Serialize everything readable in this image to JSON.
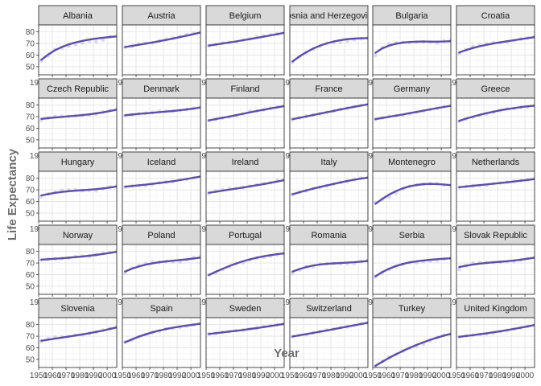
{
  "chart_data": {
    "type": "line",
    "facet": "small-multiples",
    "xlabel": "Year",
    "ylabel": "Life Expectancy",
    "xlim": [
      1950,
      2007
    ],
    "ylim": [
      43,
      86
    ],
    "x_ticks": [
      1950,
      1960,
      1970,
      1980,
      1990,
      2000
    ],
    "y_ticks": [
      50,
      60,
      70,
      80
    ],
    "grid": true,
    "colors": {
      "smooth": "#5e4fa2",
      "points": "#c9c2e8",
      "strip": "#d9d9d9"
    },
    "years": [
      1952,
      1957,
      1962,
      1967,
      1972,
      1977,
      1982,
      1987,
      1992,
      1997,
      2002,
      2007
    ],
    "panels": [
      {
        "name": "Albania",
        "raw": [
          55.2,
          59.3,
          64.8,
          66.2,
          67.7,
          68.9,
          70.4,
          72.0,
          71.6,
          73.0,
          75.7,
          76.4
        ],
        "smooth": [
          56,
          60.5,
          64.2,
          67,
          69.2,
          70.9,
          72.3,
          73.4,
          74.3,
          75,
          75.6,
          76.1
        ]
      },
      {
        "name": "Austria",
        "raw": [
          66.8,
          67.5,
          69.5,
          70.1,
          70.6,
          72.2,
          73.2,
          74.9,
          76.0,
          77.5,
          79.0,
          79.8
        ],
        "smooth": [
          66.9,
          67.9,
          68.9,
          69.9,
          70.9,
          72,
          73.1,
          74.3,
          75.5,
          76.8,
          78.1,
          79.5
        ]
      },
      {
        "name": "Belgium",
        "raw": [
          68.0,
          69.2,
          70.3,
          70.9,
          71.4,
          72.8,
          73.9,
          75.4,
          76.5,
          77.5,
          78.3,
          79.4
        ],
        "smooth": [
          68.2,
          69.1,
          70,
          70.9,
          71.8,
          72.8,
          73.8,
          74.8,
          75.9,
          77,
          78.1,
          79.2
        ]
      },
      {
        "name": "Bosnia and Herzegovina",
        "raw": [
          53.8,
          58.5,
          61.9,
          64.8,
          67.5,
          69.9,
          70.7,
          71.1,
          72.2,
          73.2,
          74.1,
          74.9
        ],
        "smooth": [
          54.5,
          58.8,
          62.5,
          65.6,
          68.1,
          70.1,
          71.7,
          72.9,
          73.7,
          74.2,
          74.5,
          74.6
        ]
      },
      {
        "name": "Bulgaria",
        "raw": [
          59.6,
          66.6,
          69.5,
          70.4,
          70.9,
          70.8,
          71.1,
          71.3,
          71.2,
          70.3,
          72.1,
          73.0
        ],
        "smooth": [
          62,
          65.8,
          68.2,
          69.8,
          70.8,
          71.3,
          71.6,
          71.7,
          71.6,
          71.6,
          71.7,
          72
        ]
      },
      {
        "name": "Croatia",
        "raw": [
          61.2,
          64.8,
          67.1,
          68.5,
          69.6,
          70.6,
          70.5,
          71.5,
          72.5,
          73.7,
          74.9,
          75.7
        ],
        "smooth": [
          62.2,
          64.3,
          66.1,
          67.6,
          68.9,
          70,
          71,
          71.9,
          72.8,
          73.7,
          74.6,
          75.5
        ]
      },
      {
        "name": "Czech Republic",
        "raw": [
          66.9,
          69.0,
          69.9,
          70.4,
          70.3,
          70.7,
          71.0,
          71.6,
          72.4,
          74.0,
          75.5,
          76.5
        ],
        "smooth": [
          68.1,
          68.7,
          69.3,
          69.8,
          70.3,
          70.8,
          71.4,
          72,
          72.8,
          73.7,
          74.8,
          76
        ]
      },
      {
        "name": "Denmark",
        "raw": [
          70.8,
          71.8,
          72.4,
          72.9,
          73.5,
          74.7,
          74.6,
          74.8,
          75.3,
          76.1,
          77.2,
          78.3
        ],
        "smooth": [
          71.2,
          71.8,
          72.4,
          72.9,
          73.4,
          73.9,
          74.4,
          74.9,
          75.5,
          76.2,
          77,
          77.9
        ]
      },
      {
        "name": "Finland",
        "raw": [
          66.6,
          67.5,
          68.8,
          69.8,
          70.9,
          72.5,
          74.6,
          74.8,
          75.7,
          77.1,
          78.4,
          79.3
        ],
        "smooth": [
          66.8,
          67.9,
          69,
          70.1,
          71.3,
          72.5,
          73.7,
          74.9,
          76,
          77.1,
          78.1,
          79.1
        ]
      },
      {
        "name": "France",
        "raw": [
          67.4,
          68.9,
          70.5,
          71.6,
          72.4,
          73.8,
          74.9,
          76.3,
          77.5,
          78.6,
          79.6,
          80.7
        ],
        "smooth": [
          67.8,
          69,
          70.2,
          71.4,
          72.6,
          73.8,
          75,
          76.2,
          77.4,
          78.5,
          79.6,
          80.6
        ]
      },
      {
        "name": "Germany",
        "raw": [
          67.5,
          69.1,
          70.3,
          70.8,
          71.0,
          72.5,
          73.8,
          74.8,
          76.1,
          77.3,
          78.7,
          79.4
        ],
        "smooth": [
          67.9,
          68.9,
          69.9,
          70.9,
          71.9,
          73,
          74.1,
          75.2,
          76.3,
          77.4,
          78.4,
          79.4
        ]
      },
      {
        "name": "Greece",
        "raw": [
          65.9,
          67.9,
          69.5,
          71.0,
          72.3,
          73.7,
          75.2,
          76.7,
          77.0,
          77.9,
          78.3,
          79.5
        ],
        "smooth": [
          66.4,
          68.3,
          70,
          71.6,
          73,
          74.3,
          75.5,
          76.5,
          77.4,
          78.2,
          78.9,
          79.5
        ]
      },
      {
        "name": "Hungary",
        "raw": [
          64.0,
          66.4,
          67.9,
          69.5,
          69.8,
          69.9,
          69.4,
          69.6,
          69.2,
          71.0,
          72.6,
          73.3
        ],
        "smooth": [
          65.2,
          66.4,
          67.4,
          68.2,
          68.8,
          69.3,
          69.7,
          70.1,
          70.6,
          71.2,
          72,
          72.9
        ]
      },
      {
        "name": "Iceland",
        "raw": [
          72.5,
          73.5,
          73.7,
          73.7,
          74.5,
          76.1,
          76.9,
          77.2,
          78.8,
          79.0,
          80.5,
          81.8
        ],
        "smooth": [
          72.7,
          73.3,
          73.9,
          74.5,
          75.2,
          75.9,
          76.7,
          77.5,
          78.4,
          79.4,
          80.4,
          81.5
        ]
      },
      {
        "name": "Ireland",
        "raw": [
          66.9,
          68.9,
          70.3,
          71.1,
          71.3,
          72.0,
          73.1,
          74.4,
          75.5,
          76.1,
          77.8,
          78.9
        ],
        "smooth": [
          67.5,
          68.4,
          69.3,
          70.2,
          71.1,
          72,
          73,
          74,
          75,
          76.1,
          77.2,
          78.4
        ]
      },
      {
        "name": "Italy",
        "raw": [
          65.9,
          67.8,
          69.2,
          71.1,
          72.2,
          73.5,
          75.0,
          76.4,
          77.4,
          78.8,
          80.2,
          80.5
        ],
        "smooth": [
          66.2,
          67.9,
          69.5,
          71,
          72.4,
          73.8,
          75.1,
          76.4,
          77.6,
          78.7,
          79.7,
          80.6
        ]
      },
      {
        "name": "Montenegro",
        "raw": [
          59.2,
          61.4,
          63.7,
          67.2,
          70.6,
          73.1,
          74.1,
          74.9,
          75.4,
          75.4,
          74.0,
          74.5
        ],
        "smooth": [
          58,
          62.2,
          65.9,
          68.9,
          71.3,
          73,
          74.2,
          74.9,
          75.1,
          75,
          74.6,
          74
        ]
      },
      {
        "name": "Netherlands",
        "raw": [
          72.1,
          72.9,
          73.2,
          73.8,
          73.8,
          75.2,
          76.0,
          76.8,
          77.4,
          78.0,
          78.5,
          79.8
        ],
        "smooth": [
          72.3,
          72.9,
          73.5,
          74.1,
          74.7,
          75.3,
          75.9,
          76.5,
          77.2,
          77.9,
          78.6,
          79.3
        ]
      },
      {
        "name": "Norway",
        "raw": [
          72.7,
          73.4,
          73.5,
          74.1,
          74.3,
          75.4,
          76.0,
          75.9,
          77.3,
          78.3,
          79.1,
          80.2
        ],
        "smooth": [
          72.9,
          73.3,
          73.7,
          74.1,
          74.6,
          75.1,
          75.7,
          76.3,
          77,
          77.8,
          78.7,
          79.7
        ]
      },
      {
        "name": "Poland",
        "raw": [
          61.3,
          65.8,
          67.6,
          69.6,
          70.9,
          70.7,
          71.3,
          71.0,
          71.0,
          72.8,
          74.7,
          75.6
        ],
        "smooth": [
          62.7,
          65.1,
          67,
          68.6,
          69.8,
          70.7,
          71.4,
          72,
          72.6,
          73.2,
          73.9,
          74.7
        ]
      },
      {
        "name": "Portugal",
        "raw": [
          59.8,
          61.5,
          64.4,
          66.6,
          69.3,
          70.4,
          72.8,
          74.1,
          74.9,
          76.0,
          77.3,
          78.1
        ],
        "smooth": [
          59.6,
          62.4,
          65,
          67.4,
          69.6,
          71.5,
          73.2,
          74.6,
          75.8,
          76.8,
          77.6,
          78.3
        ]
      },
      {
        "name": "Romania",
        "raw": [
          61.1,
          64.1,
          66.8,
          66.8,
          69.2,
          69.5,
          69.7,
          69.5,
          69.4,
          69.7,
          71.3,
          72.5
        ],
        "smooth": [
          62.6,
          64.8,
          66.5,
          67.8,
          68.7,
          69.3,
          69.7,
          70,
          70.3,
          70.7,
          71.2,
          71.8
        ]
      },
      {
        "name": "Serbia",
        "raw": [
          58.0,
          61.7,
          64.5,
          66.9,
          68.7,
          70.3,
          70.2,
          71.2,
          71.7,
          72.2,
          73.2,
          74.0
        ],
        "smooth": [
          58.6,
          62.2,
          65.1,
          67.4,
          69.2,
          70.5,
          71.5,
          72.2,
          72.8,
          73.3,
          73.7,
          74.1
        ]
      },
      {
        "name": "Slovak Republic",
        "raw": [
          64.4,
          67.5,
          70.1,
          70.5,
          70.3,
          70.5,
          70.8,
          71.1,
          71.4,
          72.7,
          73.8,
          74.7
        ],
        "smooth": [
          66.5,
          67.7,
          68.7,
          69.5,
          70.1,
          70.6,
          71.1,
          71.6,
          72.2,
          72.9,
          73.7,
          74.6
        ]
      },
      {
        "name": "Slovenia",
        "raw": [
          65.6,
          67.9,
          69.2,
          69.2,
          69.8,
          70.9,
          71.1,
          72.3,
          73.6,
          75.1,
          76.7,
          77.9
        ],
        "smooth": [
          66.1,
          67,
          67.9,
          68.8,
          69.7,
          70.6,
          71.6,
          72.6,
          73.7,
          74.9,
          76.2,
          77.6
        ]
      },
      {
        "name": "Spain",
        "raw": [
          64.9,
          66.7,
          69.7,
          71.4,
          73.1,
          74.4,
          76.3,
          76.9,
          77.6,
          78.8,
          79.8,
          80.9
        ],
        "smooth": [
          64.8,
          67.3,
          69.6,
          71.6,
          73.4,
          74.9,
          76.2,
          77.3,
          78.3,
          79.2,
          80,
          80.7
        ]
      },
      {
        "name": "Sweden",
        "raw": [
          71.9,
          72.5,
          73.4,
          74.2,
          74.7,
          75.4,
          76.4,
          77.2,
          78.2,
          79.4,
          80.0,
          80.9
        ],
        "smooth": [
          71.9,
          72.6,
          73.3,
          74,
          74.7,
          75.4,
          76.2,
          77,
          77.9,
          78.8,
          79.7,
          80.6
        ]
      },
      {
        "name": "Switzerland",
        "raw": [
          69.6,
          70.6,
          71.3,
          72.8,
          73.8,
          75.4,
          76.2,
          77.4,
          78.0,
          79.4,
          80.6,
          81.7
        ],
        "smooth": [
          69.8,
          70.8,
          71.8,
          72.8,
          73.9,
          75,
          76.1,
          77.2,
          78.3,
          79.4,
          80.5,
          81.6
        ]
      },
      {
        "name": "Turkey",
        "raw": [
          43.6,
          48.1,
          52.1,
          54.3,
          57.0,
          59.5,
          61.0,
          63.1,
          66.1,
          68.8,
          70.8,
          71.8
        ],
        "smooth": [
          44.5,
          48,
          51.3,
          54.4,
          57.3,
          60,
          62.5,
          64.8,
          66.9,
          68.8,
          70.5,
          72
        ]
      },
      {
        "name": "United Kingdom",
        "raw": [
          69.2,
          70.4,
          70.8,
          71.4,
          72.0,
          72.8,
          74.0,
          75.0,
          76.4,
          77.2,
          78.5,
          79.4
        ],
        "smooth": [
          69.5,
          70.2,
          70.9,
          71.7,
          72.5,
          73.4,
          74.3,
          75.3,
          76.3,
          77.4,
          78.5,
          79.6
        ]
      }
    ]
  }
}
